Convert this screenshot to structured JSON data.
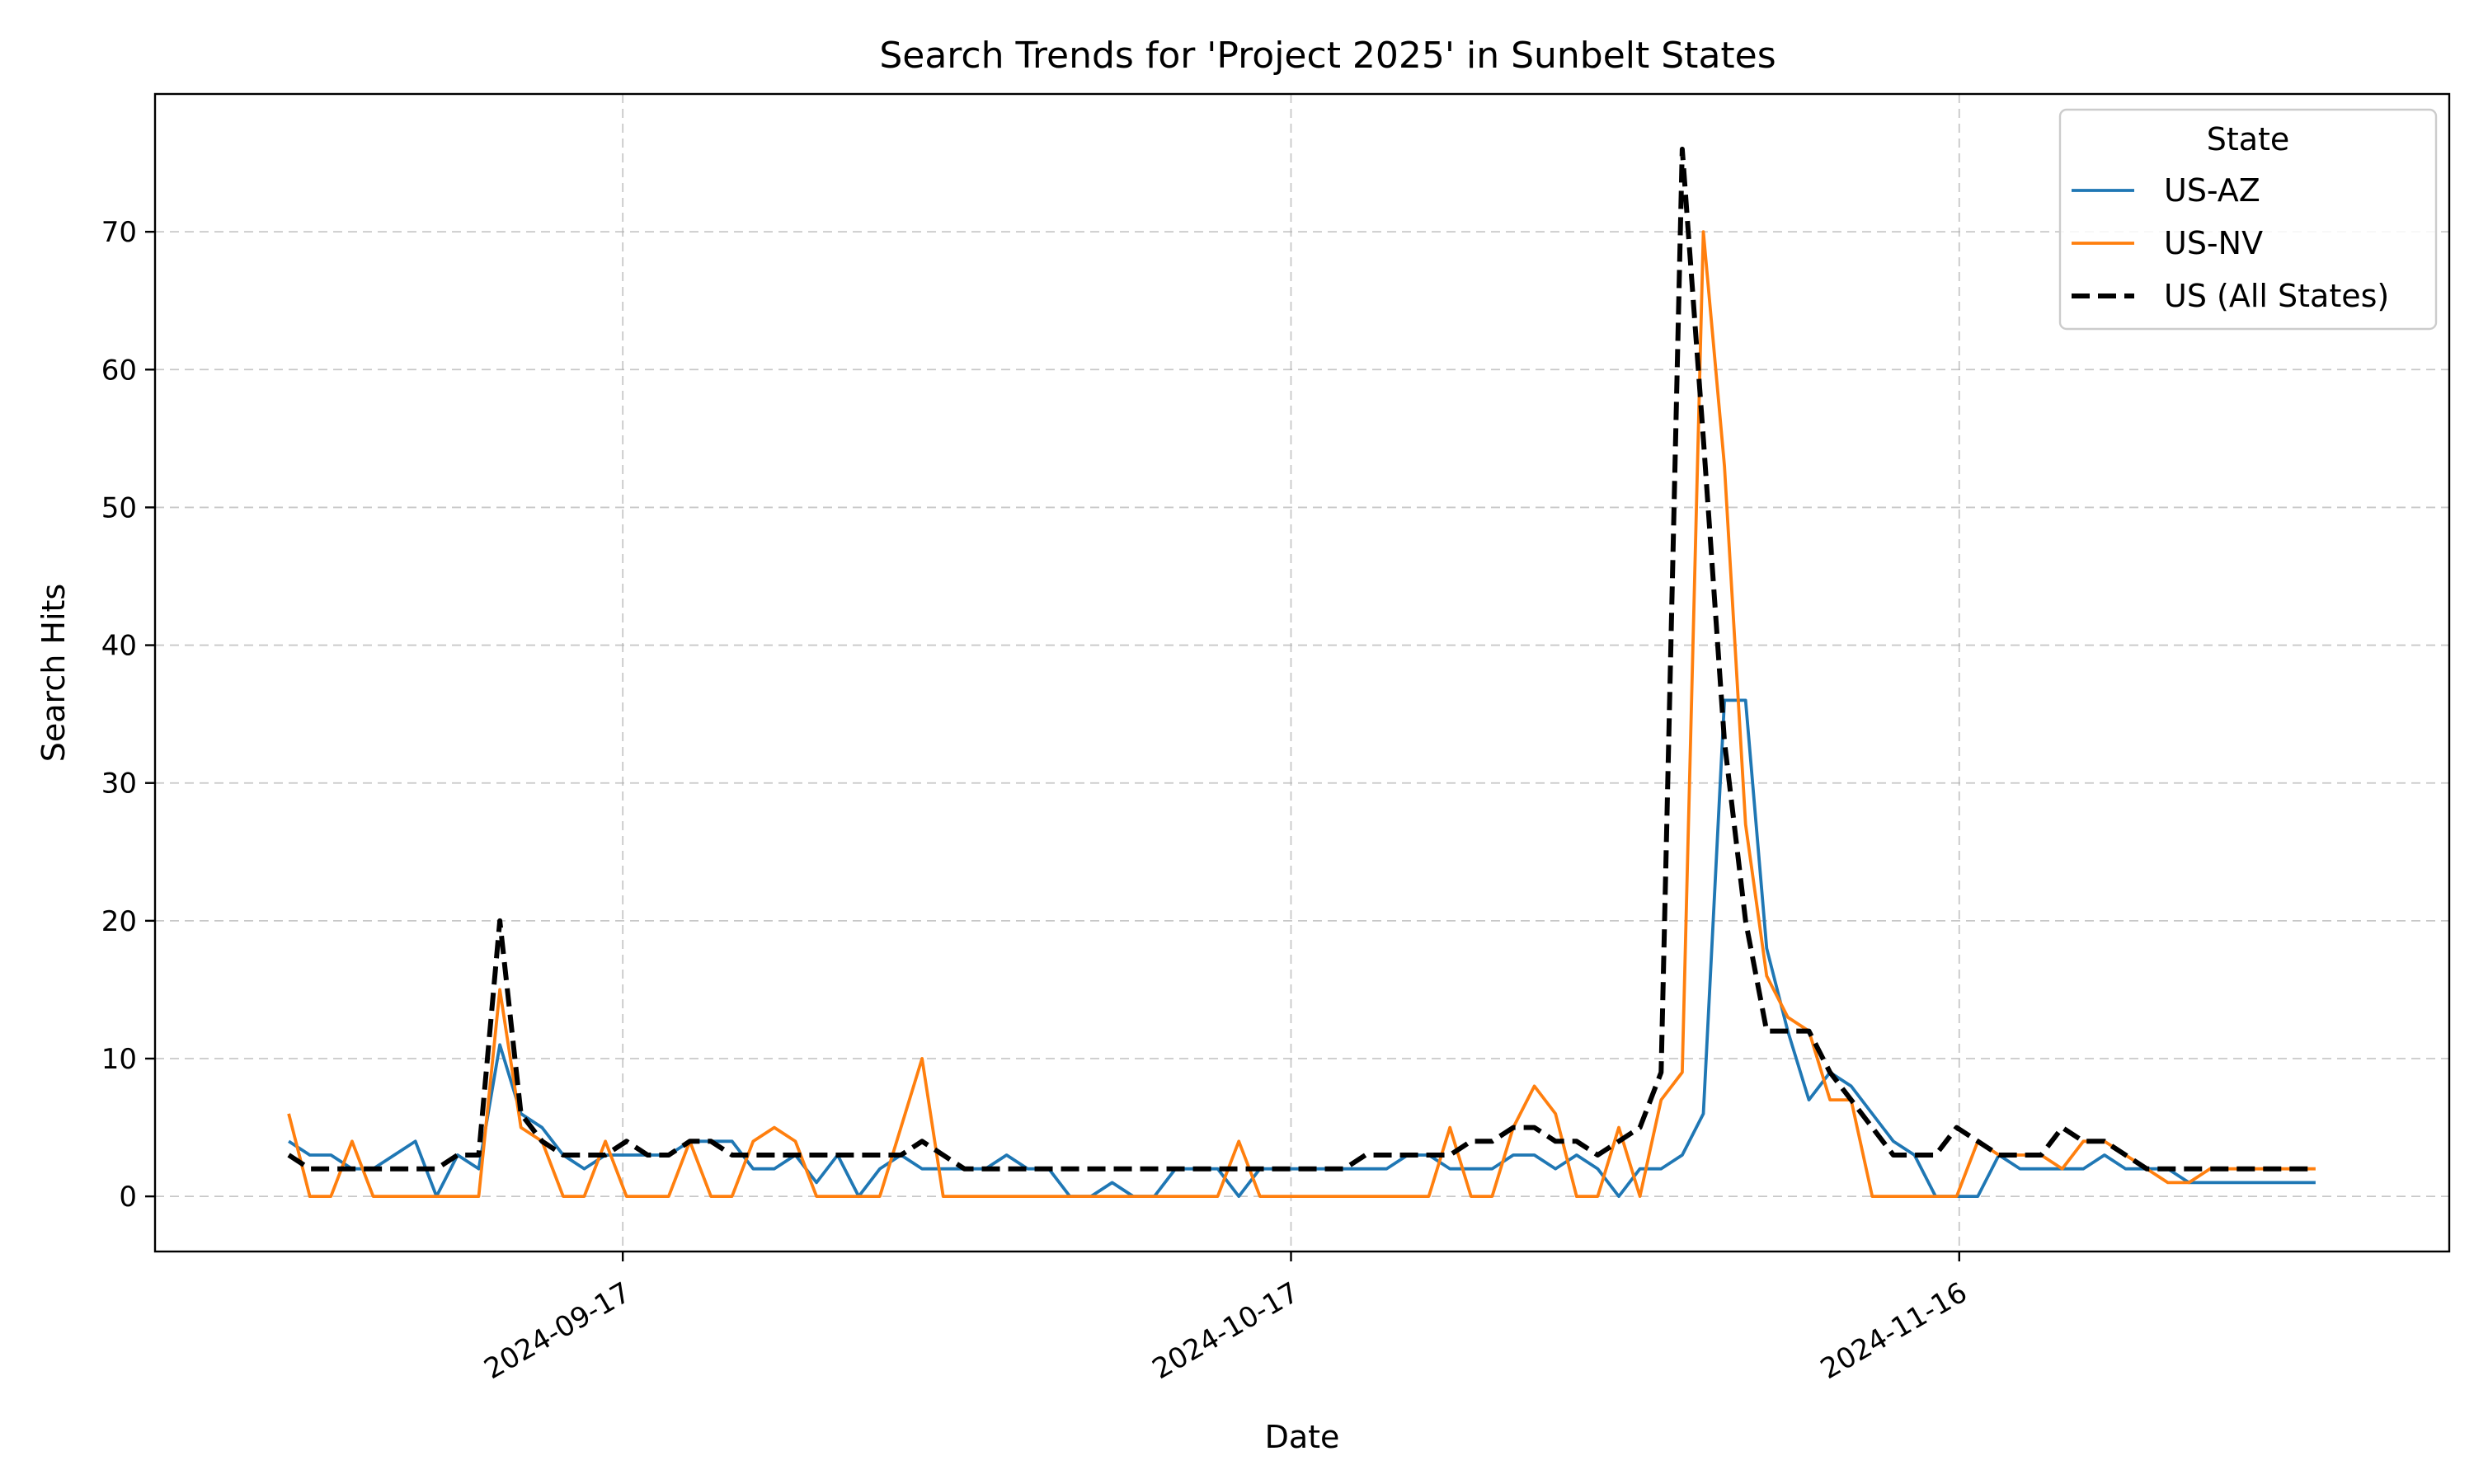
{
  "chart_data": {
    "type": "line",
    "title": "Search Trends for 'Project 2025' in Sunbelt States",
    "xlabel": "Date",
    "ylabel": "Search Hits",
    "x_start": "2024-09-02",
    "x_end": "2024-12-02",
    "xlim": [
      "2024-08-27",
      "2024-12-08"
    ],
    "ylim": [
      -4,
      80
    ],
    "grid": true,
    "legend_title": "State",
    "legend_position": "top-right",
    "x_ticks": [
      "2024-09-17",
      "2024-10-17",
      "2024-11-16"
    ],
    "y_ticks": [
      0,
      10,
      20,
      30,
      40,
      50,
      60,
      70
    ],
    "series": [
      {
        "name": "US-AZ",
        "color": "#1f77b4",
        "style": "solid",
        "values": [
          4,
          3,
          3,
          2,
          2,
          3,
          4,
          0,
          3,
          2,
          11,
          6,
          5,
          3,
          2,
          3,
          3,
          3,
          3,
          4,
          4,
          4,
          2,
          2,
          3,
          1,
          3,
          0,
          2,
          3,
          2,
          2,
          2,
          2,
          3,
          2,
          2,
          0,
          0,
          1,
          0,
          0,
          2,
          2,
          2,
          0,
          2,
          2,
          2,
          2,
          2,
          2,
          2,
          3,
          3,
          2,
          2,
          2,
          3,
          3,
          2,
          3,
          2,
          0,
          2,
          2,
          3,
          6,
          36,
          36,
          18,
          12,
          7,
          9,
          8,
          6,
          4,
          3,
          0,
          0,
          0,
          3,
          2,
          2,
          2,
          2,
          3,
          2,
          2,
          2,
          1,
          1,
          1,
          1,
          1,
          1,
          1
        ]
      },
      {
        "name": "US-NV",
        "color": "#ff7f0e",
        "style": "solid",
        "values": [
          6,
          0,
          0,
          4,
          0,
          0,
          0,
          0,
          0,
          0,
          15,
          5,
          4,
          0,
          0,
          4,
          0,
          0,
          0,
          4,
          0,
          0,
          4,
          5,
          4,
          0,
          0,
          0,
          0,
          5,
          10,
          0,
          0,
          0,
          0,
          0,
          0,
          0,
          0,
          0,
          0,
          0,
          0,
          0,
          0,
          4,
          0,
          0,
          0,
          0,
          0,
          0,
          0,
          0,
          0,
          5,
          0,
          0,
          5,
          8,
          6,
          0,
          0,
          5,
          0,
          7,
          9,
          70,
          53,
          27,
          16,
          13,
          12,
          7,
          7,
          0,
          0,
          0,
          0,
          0,
          4,
          3,
          3,
          3,
          2,
          4,
          4,
          3,
          2,
          1,
          1,
          2,
          2,
          2,
          2,
          2,
          2
        ]
      },
      {
        "name": "US (All States)",
        "color": "#000000",
        "style": "dashed",
        "values": [
          3,
          2,
          2,
          2,
          2,
          2,
          2,
          2,
          3,
          3,
          20,
          6,
          4,
          3,
          3,
          3,
          4,
          3,
          3,
          4,
          4,
          3,
          3,
          3,
          3,
          3,
          3,
          3,
          3,
          3,
          4,
          3,
          2,
          2,
          2,
          2,
          2,
          2,
          2,
          2,
          2,
          2,
          2,
          2,
          2,
          2,
          2,
          2,
          2,
          2,
          2,
          3,
          3,
          3,
          3,
          3,
          4,
          4,
          5,
          5,
          4,
          4,
          3,
          4,
          5,
          9,
          76,
          55,
          33,
          20,
          12,
          12,
          12,
          9,
          7,
          5,
          3,
          3,
          3,
          5,
          4,
          3,
          3,
          3,
          5,
          4,
          4,
          3,
          2,
          2,
          2,
          2,
          2,
          2,
          2,
          2,
          2
        ]
      }
    ]
  }
}
